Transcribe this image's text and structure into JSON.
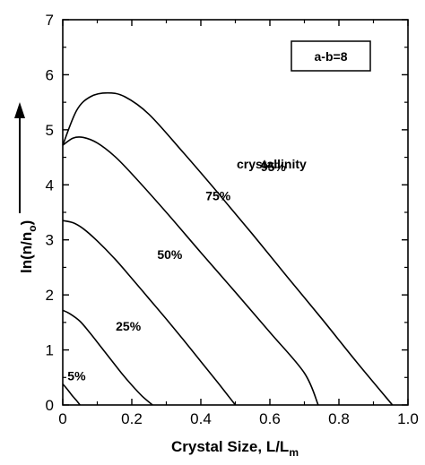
{
  "chart_data": {
    "type": "line",
    "xlabel": "Crystal  Size, L/L",
    "xlabel_sub": "m",
    "ylabel": "ln(n/n",
    "ylabel_sub": "o",
    "ylabel_close": ")",
    "xlim": [
      0,
      1.0
    ],
    "ylim": [
      0,
      7
    ],
    "xticks": [
      0,
      0.2,
      0.4,
      0.6,
      0.8,
      1.0
    ],
    "xtick_labels": [
      "0",
      "0.2",
      "0.4",
      "0.6",
      "0.8",
      "1.0"
    ],
    "yticks": [
      0,
      1,
      2,
      3,
      4,
      5,
      6,
      7
    ],
    "ytick_labels": [
      "0",
      "1",
      "2",
      "3",
      "4",
      "5",
      "6",
      "7"
    ],
    "grid": false,
    "legend_box": "a-b=8",
    "annotation": "crystallinity",
    "series": [
      {
        "name": "5%",
        "x": [
          0,
          0.01,
          0.02,
          0.03,
          0.04,
          0.05
        ],
        "y": [
          0.38,
          0.31,
          0.23,
          0.15,
          0.08,
          0.0
        ]
      },
      {
        "name": "25%",
        "x": [
          0,
          0.02,
          0.05,
          0.08,
          0.11,
          0.14,
          0.17,
          0.2,
          0.23,
          0.26
        ],
        "y": [
          1.72,
          1.66,
          1.52,
          1.3,
          1.06,
          0.82,
          0.58,
          0.36,
          0.16,
          0.0
        ]
      },
      {
        "name": "50%",
        "x": [
          0,
          0.03,
          0.06,
          0.1,
          0.15,
          0.2,
          0.25,
          0.3,
          0.35,
          0.4,
          0.45,
          0.5
        ],
        "y": [
          3.35,
          3.31,
          3.2,
          2.98,
          2.66,
          2.3,
          1.93,
          1.56,
          1.18,
          0.79,
          0.4,
          0.0
        ]
      },
      {
        "name": "75%",
        "x": [
          0,
          0.03,
          0.06,
          0.1,
          0.15,
          0.2,
          0.3,
          0.4,
          0.5,
          0.6,
          0.7,
          0.74
        ],
        "y": [
          4.72,
          4.85,
          4.86,
          4.76,
          4.52,
          4.2,
          3.5,
          2.77,
          2.05,
          1.32,
          0.58,
          0.0
        ]
      },
      {
        "name": "95%",
        "x": [
          0,
          0.04,
          0.08,
          0.13,
          0.18,
          0.25,
          0.35,
          0.45,
          0.55,
          0.65,
          0.75,
          0.85,
          0.955
        ],
        "y": [
          4.72,
          5.35,
          5.6,
          5.67,
          5.6,
          5.28,
          4.58,
          3.85,
          3.1,
          2.33,
          1.57,
          0.79,
          0.0
        ]
      }
    ],
    "curve_labels": [
      "5%",
      "25%",
      "50%",
      "75%",
      "95%"
    ]
  }
}
